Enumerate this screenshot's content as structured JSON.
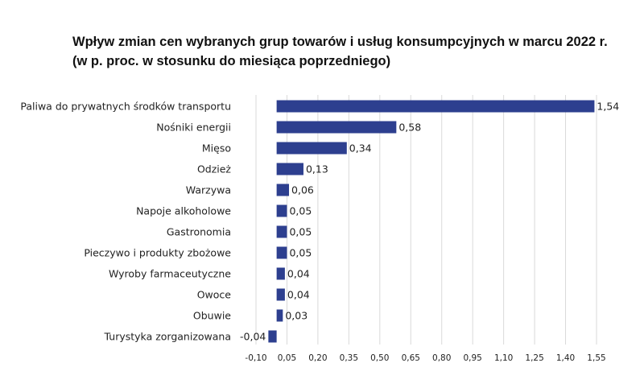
{
  "chart_data": {
    "type": "bar",
    "orientation": "horizontal",
    "title": "Wpływ zmian cen wybranych grup towarów i usług konsumpcyjnych w marcu 2022 r.",
    "subtitle": "(w p. proc. w stosunku do miesiąca poprzedniego)",
    "categories": [
      "Paliwa do prywatnych środków transportu",
      "Nośniki energii",
      "Mięso",
      "Odzież",
      "Warzywa",
      "Napoje alkoholowe",
      "Gastronomia",
      "Pieczywo i produkty zbożowe",
      "Wyroby farmaceutyczne",
      "Owoce",
      "Obuwie",
      "Turystyka zorganizowana"
    ],
    "values": [
      1.54,
      0.58,
      0.34,
      0.13,
      0.06,
      0.05,
      0.05,
      0.05,
      0.04,
      0.04,
      0.03,
      -0.04
    ],
    "value_labels": [
      "1,54",
      "0,58",
      "0,34",
      "0,13",
      "0,06",
      "0,05",
      "0,05",
      "0,05",
      "0,04",
      "0,04",
      "0,03",
      "-0,04"
    ],
    "xticks": [
      -0.1,
      0.05,
      0.2,
      0.35,
      0.5,
      0.65,
      0.8,
      0.95,
      1.1,
      1.25,
      1.4,
      1.55
    ],
    "xtick_labels": [
      "-0,10",
      "0,05",
      "0,20",
      "0,35",
      "0,50",
      "0,65",
      "0,80",
      "0,95",
      "1,10",
      "1,25",
      "1,40",
      "1,55"
    ],
    "xlim": [
      -0.1,
      1.55
    ],
    "grid": "vertical",
    "bar_color": "#2d3f8f",
    "grid_color": "#d9d9d9"
  }
}
